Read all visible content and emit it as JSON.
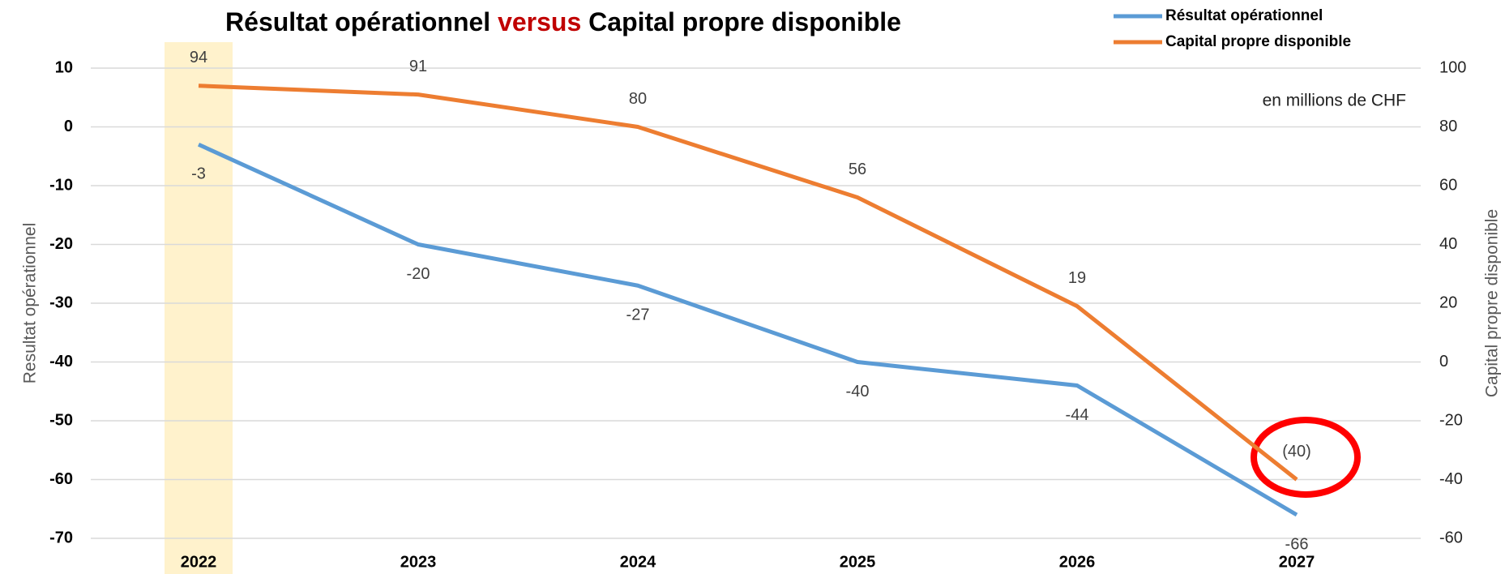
{
  "chart_data": {
    "type": "line",
    "title_segments": [
      {
        "text": "Résultat opérationnel",
        "color": "#000000"
      },
      {
        "text": "versus",
        "color": "#c00000"
      },
      {
        "text": "Capital propre disponible",
        "color": "#000000"
      }
    ],
    "annotation": "en millions de CHF",
    "ylabel": "Resultat opérationnel",
    "y2label": "Capital propre disponible",
    "categories": [
      "2022",
      "2023",
      "2024",
      "2025",
      "2026",
      "2027"
    ],
    "series": [
      {
        "name": "Résultat opérationnel",
        "color": "#5b9bd5",
        "values": [
          -3,
          -20,
          -27,
          -40,
          -44,
          -66
        ]
      },
      {
        "name": "Capital propre disponible",
        "color": "#ed7d31",
        "axis": "y2",
        "values": [
          94,
          91,
          80,
          56,
          19,
          -40
        ],
        "value_labels": [
          "94",
          "91",
          "80",
          "56",
          "19",
          "(40)"
        ]
      }
    ],
    "ylim": [
      -70,
      10
    ],
    "yticks": [
      -70,
      -60,
      -50,
      -40,
      -30,
      -20,
      -10,
      0,
      10
    ],
    "y2lim": [
      -60,
      100
    ],
    "y2ticks": [
      -60,
      -40,
      -20,
      0,
      20,
      40,
      60,
      80,
      100
    ],
    "grid": true,
    "legend": "top-right",
    "highlight": {
      "category_index": 0,
      "color": "#fff2cc"
    }
  }
}
